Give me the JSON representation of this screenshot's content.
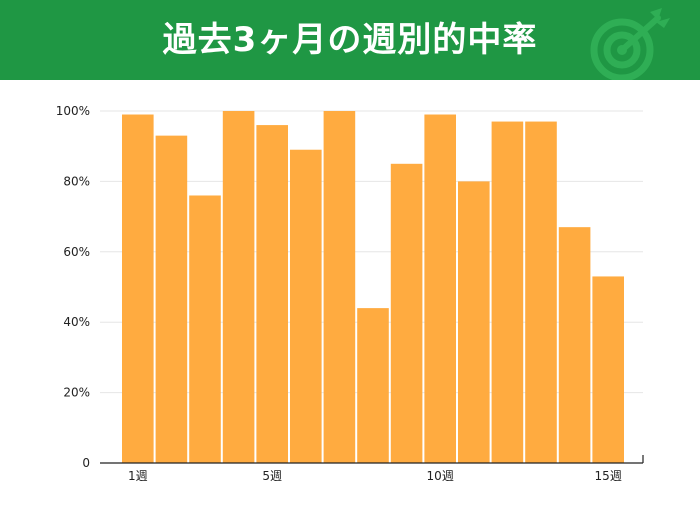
{
  "header": {
    "title": "過去3ヶ月の週別的中率",
    "icon": "target-arrow-icon",
    "background": "#1f9744"
  },
  "chart_data": {
    "type": "bar",
    "title": "過去3ヶ月の週別的中率",
    "xlabel": "",
    "ylabel": "",
    "categories": [
      "1週",
      "2週",
      "3週",
      "4週",
      "5週",
      "6週",
      "7週",
      "8週",
      "9週",
      "10週",
      "11週",
      "12週",
      "13週",
      "14週",
      "15週"
    ],
    "x_tick_labels": [
      {
        "index": 0,
        "label": "1週"
      },
      {
        "index": 4,
        "label": "5週"
      },
      {
        "index": 9,
        "label": "10週"
      },
      {
        "index": 14,
        "label": "15週"
      }
    ],
    "values": [
      99,
      93,
      76,
      100,
      96,
      89,
      100,
      44,
      85,
      99,
      80,
      97,
      97,
      67,
      53
    ],
    "ylim": [
      0,
      100
    ],
    "y_ticks": [
      {
        "value": 0,
        "label": "0"
      },
      {
        "value": 20,
        "label": "20%"
      },
      {
        "value": 40,
        "label": "40%"
      },
      {
        "value": 60,
        "label": "60%"
      },
      {
        "value": 80,
        "label": "80%"
      },
      {
        "value": 100,
        "label": "100%"
      }
    ],
    "grid": true,
    "bar_color": "#ffab40"
  }
}
